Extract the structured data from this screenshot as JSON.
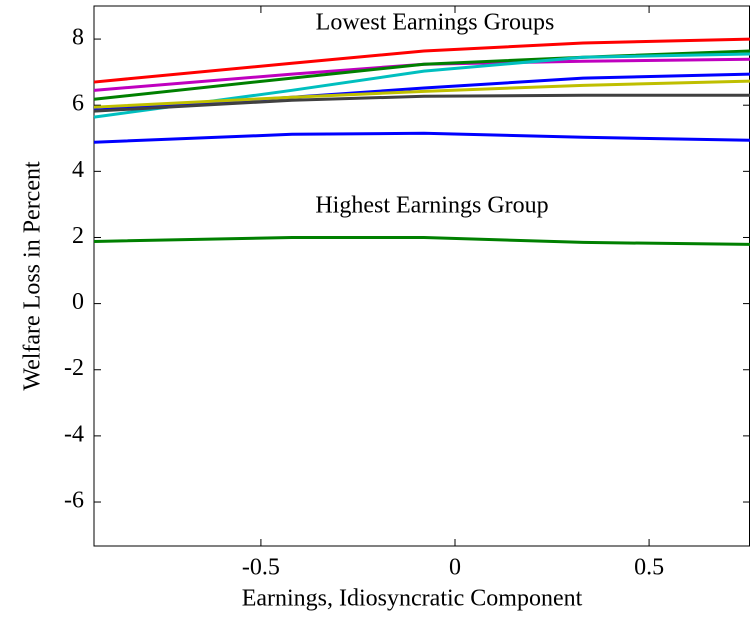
{
  "chart_data": {
    "type": "line",
    "x_label": "Earnings, Idiosyncratic Component",
    "y_label": "Welfare Loss in Percent",
    "annotations": [
      "Lowest Earnings Groups",
      "Highest Earnings Group"
    ],
    "x": [
      -0.93,
      -0.42,
      -0.08,
      0.33,
      0.76
    ],
    "series": [
      {
        "color": "#ff0000",
        "values": [
          6.7,
          7.27,
          7.64,
          7.88,
          8.0
        ]
      },
      {
        "color": "#bf00bf",
        "values": [
          6.45,
          6.94,
          7.24,
          7.33,
          7.39
        ]
      },
      {
        "color": "#008000",
        "values": [
          6.18,
          6.82,
          7.24,
          7.45,
          7.64
        ]
      },
      {
        "color": "#00bfbf",
        "values": [
          5.64,
          6.45,
          7.03,
          7.45,
          7.55
        ]
      },
      {
        "color": "#0000ff",
        "values": [
          5.85,
          6.24,
          6.52,
          6.82,
          6.94
        ]
      },
      {
        "color": "#bfbf00",
        "values": [
          5.94,
          6.24,
          6.42,
          6.6,
          6.73
        ]
      },
      {
        "color": "#404040",
        "values": [
          5.82,
          6.15,
          6.27,
          6.3,
          6.3
        ]
      },
      {
        "color": "#0000ff",
        "values": [
          4.88,
          5.12,
          5.15,
          5.03,
          4.94
        ]
      },
      {
        "color": "#008000",
        "values": [
          1.88,
          2.0,
          2.0,
          1.85,
          1.79
        ]
      }
    ],
    "xlim": [
      -0.93,
      0.76
    ],
    "ylim": [
      -7.33,
      9
    ],
    "xticks": [
      -0.5,
      0,
      0.5
    ],
    "yticks": [
      -6,
      -4,
      -2,
      0,
      2,
      4,
      6,
      8
    ]
  }
}
